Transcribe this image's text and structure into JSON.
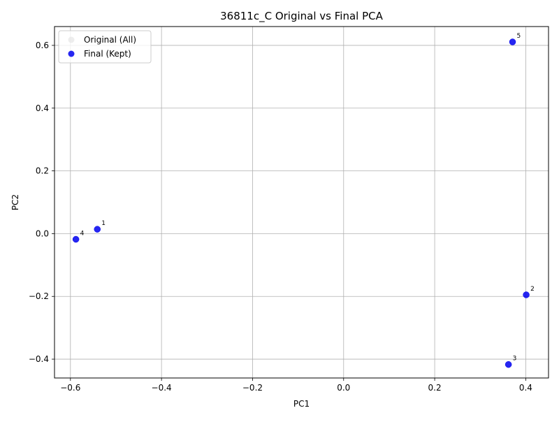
{
  "chart_data": {
    "type": "scatter",
    "title": "36811c_C Original vs Final PCA",
    "xlabel": "PC1",
    "ylabel": "PC2",
    "xlim": [
      -0.635,
      0.45
    ],
    "ylim": [
      -0.46,
      0.66
    ],
    "xticks": [
      -0.6,
      -0.4,
      -0.2,
      0.0,
      0.2,
      0.4
    ],
    "xtick_labels": [
      "−0.6",
      "−0.4",
      "−0.2",
      "0.0",
      "0.2",
      "0.4"
    ],
    "yticks": [
      -0.4,
      -0.2,
      0.0,
      0.2,
      0.4,
      0.6
    ],
    "ytick_labels": [
      "−0.4",
      "−0.2",
      "0.0",
      "0.2",
      "0.4",
      "0.6"
    ],
    "grid": true,
    "legend_position": "upper left",
    "series": [
      {
        "name": "Original (All)",
        "color": "#e6e6e6",
        "points": []
      },
      {
        "name": "Final (Kept)",
        "color": "#0000ee",
        "points": [
          {
            "x": -0.541,
            "y": 0.014,
            "label": "1"
          },
          {
            "x": 0.401,
            "y": -0.195,
            "label": "2"
          },
          {
            "x": 0.362,
            "y": -0.417,
            "label": "3"
          },
          {
            "x": -0.588,
            "y": -0.018,
            "label": "4"
          },
          {
            "x": 0.371,
            "y": 0.611,
            "label": "5"
          }
        ]
      }
    ]
  }
}
